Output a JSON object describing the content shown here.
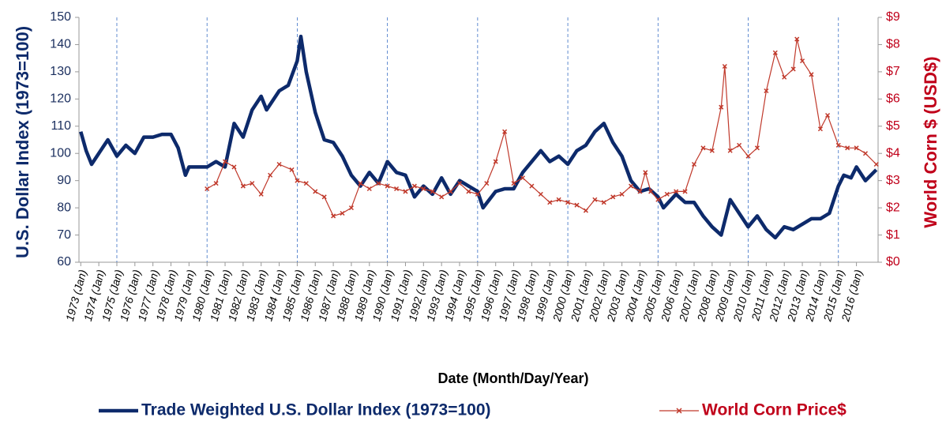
{
  "chart_data": {
    "type": "line",
    "x_title": "Date (Month/Day/Year)",
    "y_title": "U.S. Dollar Index (1973=100)",
    "y2_title": "World Corn $ (USD$)",
    "xlim": [
      1972.9,
      2017.2
    ],
    "xticks": [
      {
        "value": 1973,
        "label": "1973 (Jan)"
      },
      {
        "value": 1974,
        "label": "1974 (Jan)"
      },
      {
        "value": 1975,
        "label": "1975 (Jan)"
      },
      {
        "value": 1976,
        "label": "1976 (Jan)"
      },
      {
        "value": 1977,
        "label": "1977 (Jan)"
      },
      {
        "value": 1978,
        "label": "1978 (Jan)"
      },
      {
        "value": 1979,
        "label": "1979 (Jan)"
      },
      {
        "value": 1980,
        "label": "1980 (Jan)"
      },
      {
        "value": 1981,
        "label": "1981 (Jan)"
      },
      {
        "value": 1982,
        "label": "1982 (Jan)"
      },
      {
        "value": 1983,
        "label": "1983 (Jan)"
      },
      {
        "value": 1984,
        "label": "1984 (Jan)"
      },
      {
        "value": 1985,
        "label": "1985 (Jan)"
      },
      {
        "value": 1986,
        "label": "1986 (Jan)"
      },
      {
        "value": 1987,
        "label": "1987 (Jan)"
      },
      {
        "value": 1988,
        "label": "1988 (Jan)"
      },
      {
        "value": 1989,
        "label": "1989 (Jan)"
      },
      {
        "value": 1990,
        "label": "1990 (Jan)"
      },
      {
        "value": 1991,
        "label": "1991 (Jan)"
      },
      {
        "value": 1992,
        "label": "1992 (Jan)"
      },
      {
        "value": 1993,
        "label": "1993 (Jan)"
      },
      {
        "value": 1994,
        "label": "1994 (Jan)"
      },
      {
        "value": 1995,
        "label": "1995 (Jan)"
      },
      {
        "value": 1996,
        "label": "1996 (Jan)"
      },
      {
        "value": 1997,
        "label": "1997 (Jan)"
      },
      {
        "value": 1998,
        "label": "1998 (Jan)"
      },
      {
        "value": 1999,
        "label": "1999 (Jan)"
      },
      {
        "value": 2000,
        "label": "2000 (Jan)"
      },
      {
        "value": 2001,
        "label": "2001 (Jan)"
      },
      {
        "value": 2002,
        "label": "2002 (Jan)"
      },
      {
        "value": 2003,
        "label": "2003 (Jan)"
      },
      {
        "value": 2004,
        "label": "2004 (Jan)"
      },
      {
        "value": 2005,
        "label": "2005 (Jan)"
      },
      {
        "value": 2006,
        "label": "2006 (Jan)"
      },
      {
        "value": 2007,
        "label": "2007 (Jan)"
      },
      {
        "value": 2008,
        "label": "2008 (Jan)"
      },
      {
        "value": 2009,
        "label": "2009 (Jan)"
      },
      {
        "value": 2010,
        "label": "2010 (Jan)"
      },
      {
        "value": 2011,
        "label": "2011 (Jan)"
      },
      {
        "value": 2012,
        "label": "2012 (Jan)"
      },
      {
        "value": 2013,
        "label": "2013 (Jan)"
      },
      {
        "value": 2014,
        "label": "2014 (Jan)"
      },
      {
        "value": 2015,
        "label": "2015 (Jan)"
      },
      {
        "value": 2016,
        "label": "2016 (Jan)"
      }
    ],
    "xgrid": [
      1975,
      1980,
      1985,
      1990,
      1995,
      2000,
      2005,
      2010,
      2015
    ],
    "ylim": [
      60,
      150
    ],
    "yticks": [
      60,
      70,
      80,
      90,
      100,
      110,
      120,
      130,
      140,
      150
    ],
    "y2lim": [
      0,
      9
    ],
    "y2ticks": [
      {
        "value": 0,
        "label": "$0"
      },
      {
        "value": 1,
        "label": "$1"
      },
      {
        "value": 2,
        "label": "$2"
      },
      {
        "value": 3,
        "label": "$3"
      },
      {
        "value": 4,
        "label": "$4"
      },
      {
        "value": 5,
        "label": "$5"
      },
      {
        "value": 6,
        "label": "$6"
      },
      {
        "value": 7,
        "label": "$7"
      },
      {
        "value": 8,
        "label": "$8"
      },
      {
        "value": 9,
        "label": "$9"
      }
    ],
    "series": [
      {
        "name": "Trade Weighted U.S. Dollar Index (1973=100)",
        "color": "#0d2a6b",
        "x": [
          1973,
          1973.3,
          1973.6,
          1974,
          1974.5,
          1975,
          1975.5,
          1976,
          1976.5,
          1977,
          1977.5,
          1978,
          1978.4,
          1978.8,
          1979,
          1980,
          1980.5,
          1981,
          1981.5,
          1982,
          1982.5,
          1983,
          1983.3,
          1984,
          1984.5,
          1985,
          1985.2,
          1985.5,
          1986,
          1986.5,
          1987,
          1987.5,
          1988,
          1988.5,
          1989,
          1989.5,
          1990,
          1990.5,
          1991,
          1991.5,
          1992,
          1992.5,
          1993,
          1993.5,
          1994,
          1994.5,
          1995,
          1995.3,
          1996,
          1996.5,
          1997,
          1997.5,
          1998,
          1998.5,
          1999,
          1999.5,
          2000,
          2000.5,
          2001,
          2001.5,
          2002,
          2002.5,
          2003,
          2003.5,
          2004,
          2004.5,
          2005,
          2005.3,
          2006,
          2006.5,
          2007,
          2007.5,
          2008,
          2008.5,
          2009,
          2009.5,
          2010,
          2010.5,
          2011,
          2011.5,
          2012,
          2012.5,
          2013,
          2013.5,
          2014,
          2014.5,
          2015,
          2015.3,
          2015.7,
          2016,
          2016.5,
          2017.1
        ],
        "values": [
          108,
          101,
          96,
          100,
          105,
          99,
          103,
          100,
          106,
          106,
          107,
          107,
          102,
          92,
          95,
          95,
          97,
          95,
          111,
          106,
          116,
          121,
          116,
          123,
          125,
          134,
          143,
          130,
          115,
          105,
          104,
          99,
          92,
          88,
          93,
          89,
          97,
          93,
          92,
          84,
          88,
          85,
          91,
          85,
          90,
          88,
          86,
          80,
          86,
          87,
          87,
          93,
          97,
          101,
          97,
          99,
          96,
          101,
          103,
          108,
          111,
          104,
          99,
          90,
          86,
          87,
          84,
          80,
          85,
          82,
          82,
          77,
          73,
          70,
          83,
          78,
          73,
          77,
          72,
          69,
          73,
          72,
          74,
          76,
          76,
          78,
          88,
          92,
          91,
          95,
          90,
          94
        ]
      },
      {
        "name": "World Corn Price$",
        "color": "#c0392b",
        "axis": "y2",
        "x": [
          1980,
          1980.5,
          1981,
          1981.5,
          1982,
          1982.5,
          1983,
          1983.5,
          1984,
          1984.7,
          1985,
          1985.5,
          1986,
          1986.5,
          1987,
          1987.5,
          1988,
          1988.5,
          1989,
          1989.5,
          1990,
          1990.5,
          1991,
          1991.5,
          1992,
          1992.5,
          1993,
          1993.5,
          1994,
          1994.5,
          1995,
          1995.5,
          1996,
          1996.5,
          1997,
          1997.5,
          1998,
          1998.5,
          1999,
          1999.5,
          2000,
          2000.5,
          2001,
          2001.5,
          2002,
          2002.5,
          2003,
          2003.5,
          2004,
          2004.3,
          2004.6,
          2005,
          2005.5,
          2006,
          2006.5,
          2007,
          2007.5,
          2008,
          2008.5,
          2008.7,
          2009,
          2009.5,
          2010,
          2010.5,
          2011,
          2011.5,
          2012,
          2012.5,
          2012.7,
          2013,
          2013.5,
          2014,
          2014.4,
          2015,
          2015.5,
          2016,
          2016.5,
          2017.1
        ],
        "values": [
          2.7,
          2.9,
          3.7,
          3.5,
          2.8,
          2.9,
          2.5,
          3.2,
          3.6,
          3.4,
          3.0,
          2.9,
          2.6,
          2.4,
          1.7,
          1.8,
          2.0,
          2.9,
          2.7,
          2.9,
          2.8,
          2.7,
          2.6,
          2.8,
          2.7,
          2.6,
          2.4,
          2.6,
          2.9,
          2.6,
          2.5,
          2.9,
          3.7,
          4.8,
          2.9,
          3.1,
          2.8,
          2.5,
          2.2,
          2.3,
          2.2,
          2.1,
          1.9,
          2.3,
          2.2,
          2.4,
          2.5,
          2.8,
          2.6,
          3.3,
          2.6,
          2.3,
          2.5,
          2.6,
          2.6,
          3.6,
          4.2,
          4.1,
          5.7,
          7.2,
          4.1,
          4.3,
          3.9,
          4.2,
          6.3,
          7.7,
          6.8,
          7.1,
          8.2,
          7.4,
          6.9,
          4.9,
          5.4,
          4.3,
          4.2,
          4.2,
          4.0,
          3.6
        ]
      }
    ],
    "grid": false,
    "legend": "bottom"
  }
}
